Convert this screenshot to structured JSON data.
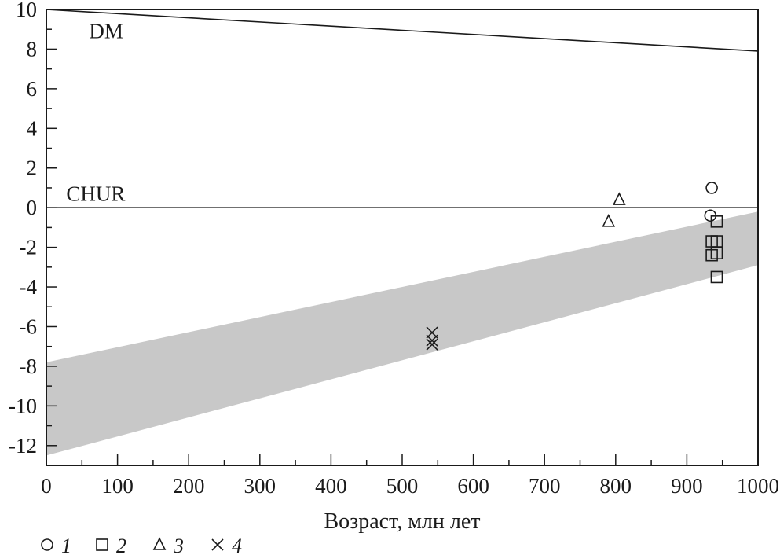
{
  "chart_data": {
    "type": "scatter",
    "title": "",
    "xlabel": "Возраст, млн лет",
    "ylabel": "",
    "xlim": [
      0,
      1000
    ],
    "ylim": [
      -13,
      10
    ],
    "x_ticks": [
      0,
      100,
      200,
      300,
      400,
      500,
      600,
      700,
      800,
      900,
      1000
    ],
    "y_ticks": [
      10,
      8,
      6,
      4,
      2,
      0,
      -2,
      -4,
      -6,
      -8,
      -10,
      -12
    ],
    "grid": false,
    "reference_lines": [
      {
        "name": "DM",
        "x": [
          0,
          1000
        ],
        "y": [
          10,
          7.9
        ]
      },
      {
        "name": "CHUR",
        "x": [
          0,
          1000
        ],
        "y": [
          0,
          0
        ]
      }
    ],
    "band": {
      "color": "#c8c8c8",
      "x": [
        0,
        1000
      ],
      "upper": [
        -7.8,
        -0.2
      ],
      "lower": [
        -12.5,
        -2.9
      ]
    },
    "series": [
      {
        "name": "1",
        "marker": "circle",
        "points": [
          [
            935,
            1.0
          ],
          [
            933,
            -0.4
          ]
        ]
      },
      {
        "name": "2",
        "marker": "square",
        "points": [
          [
            942,
            -0.7
          ],
          [
            935,
            -1.7
          ],
          [
            942,
            -1.7
          ],
          [
            935,
            -2.4
          ],
          [
            942,
            -2.3
          ],
          [
            942,
            -3.5
          ]
        ]
      },
      {
        "name": "3",
        "marker": "triangle",
        "points": [
          [
            805,
            0.4
          ],
          [
            790,
            -0.7
          ]
        ]
      },
      {
        "name": "4",
        "marker": "x",
        "points": [
          [
            542,
            -6.3
          ],
          [
            542,
            -6.7
          ],
          [
            542,
            -6.9
          ]
        ]
      }
    ],
    "legend_position": "bottom-left"
  }
}
